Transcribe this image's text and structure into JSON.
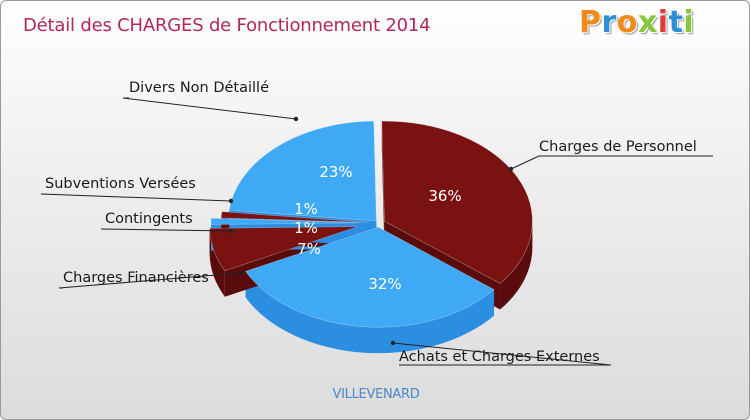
{
  "title": "Détail des CHARGES de Fonctionnement 2014",
  "logo": {
    "text": "Proxiti",
    "letters": [
      "P",
      "r",
      "o",
      "x",
      "i",
      "t",
      "i"
    ],
    "colors": [
      "#f08a1a",
      "#2e8fd8",
      "#f08a1a",
      "#8ac53f",
      "#e23a3a",
      "#2e8fd8",
      "#8ac53f"
    ]
  },
  "subtitle": "VILLEVENARD",
  "colors": {
    "dark_red": "#7a1212",
    "dark_red_side": "#5a0c0c",
    "blue": "#3fa9f5",
    "blue_side": "#2b8ee0",
    "leader": "#222222"
  },
  "chart_data": {
    "type": "pie",
    "title": "Détail des CHARGES de Fonctionnement 2014",
    "series": [
      {
        "label": "Charges de Personnel",
        "value": 36,
        "display": "36%",
        "color": "#7a1212"
      },
      {
        "label": "Achats et Charges Externes",
        "value": 32,
        "display": "32%",
        "color": "#3fa9f5"
      },
      {
        "label": "Charges Financières",
        "value": 7,
        "display": "7%",
        "color": "#7a1212"
      },
      {
        "label": "Contingents",
        "value": 1,
        "display": "1%",
        "color": "#3fa9f5"
      },
      {
        "label": "Subventions Versées",
        "value": 1,
        "display": "1%",
        "color": "#7a1212"
      },
      {
        "label": "Divers Non Détaillé",
        "value": 23,
        "display": "23%",
        "color": "#3fa9f5"
      }
    ]
  }
}
